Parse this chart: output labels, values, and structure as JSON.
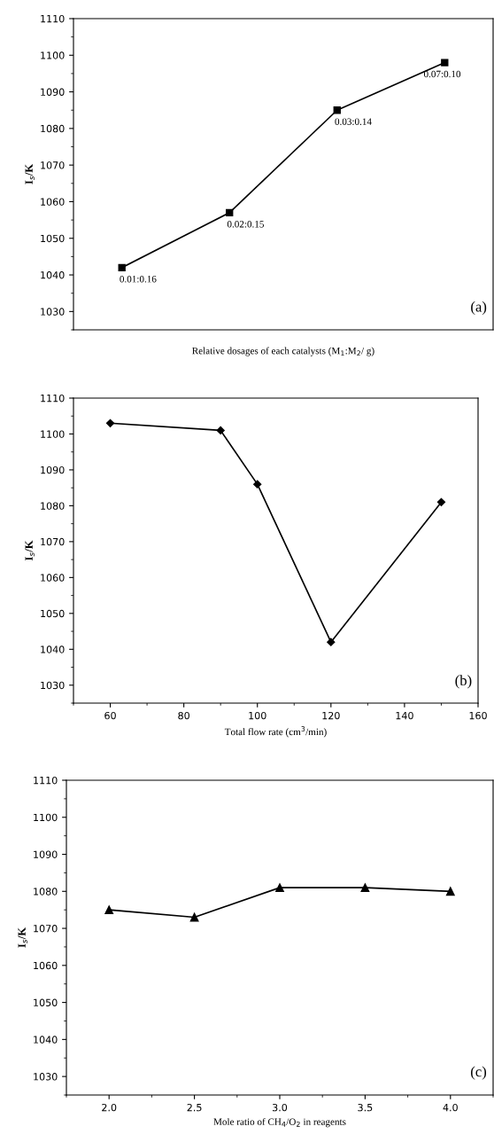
{
  "chart_data": [
    {
      "type": "line",
      "categories": [
        null,
        null,
        null,
        null
      ],
      "values": [
        1042,
        1057,
        1085,
        1098
      ],
      "color": "#000000",
      "marker": "square",
      "xlabel": "Relative dosages of each catalysts (M$_{1}$:M$_{2}$/ g)",
      "ylabel": "I$_{s}$/K",
      "ylim": [
        1025,
        1110
      ],
      "yticks": [
        1030,
        1040,
        1050,
        1060,
        1070,
        1080,
        1090,
        1100,
        1110
      ],
      "value_labels": [
        "0.01:0.16",
        "0.02:0.15",
        "0.03:0.14",
        "0.07:0.10"
      ],
      "annotations": [
        "(a)"
      ],
      "tick_labels": "y",
      "grid": false,
      "legend": false
    },
    {
      "type": "line",
      "x": [
        60,
        90,
        100,
        120,
        150
      ],
      "values": [
        1103,
        1101,
        1086,
        1042,
        1081
      ],
      "color": "#000000",
      "marker": "diamond",
      "xlabel": "Total flow rate (cm$^{3}$/min)",
      "ylabel": "I$_{s}$/K",
      "xlim": [
        50,
        160
      ],
      "xticks": [
        60,
        80,
        100,
        120,
        140,
        160
      ],
      "ylim": [
        1025,
        1110
      ],
      "yticks": [
        1030,
        1040,
        1050,
        1060,
        1070,
        1080,
        1090,
        1100,
        1110
      ],
      "annotations": [
        "(b)"
      ],
      "grid": false,
      "legend": false
    },
    {
      "type": "line",
      "x": [
        2.0,
        2.5,
        3.0,
        3.5,
        4.0
      ],
      "values": [
        1075,
        1073,
        1081,
        1081,
        1080
      ],
      "color": "#000000",
      "marker": "triangle",
      "xlabel": "Mole ratio of CH$_{4}$/O$_{2}$ in reagents",
      "ylabel": "I$_{s}$/K",
      "xlim": [
        1.75,
        4.25
      ],
      "xticks": [
        {
          "value": 2.0,
          "label": "2.0"
        },
        {
          "value": 2.5,
          "label": "2.5"
        },
        {
          "value": 3.0,
          "label": "3.0"
        },
        {
          "value": 3.5,
          "label": "3.5"
        },
        {
          "value": 4.0,
          "label": "4.0"
        }
      ],
      "ylim": [
        1025,
        1110
      ],
      "yticks": [
        1030,
        1040,
        1050,
        1060,
        1070,
        1080,
        1090,
        1100,
        1110
      ],
      "annotations": [
        "(c)"
      ],
      "grid": false,
      "legend": false
    }
  ]
}
